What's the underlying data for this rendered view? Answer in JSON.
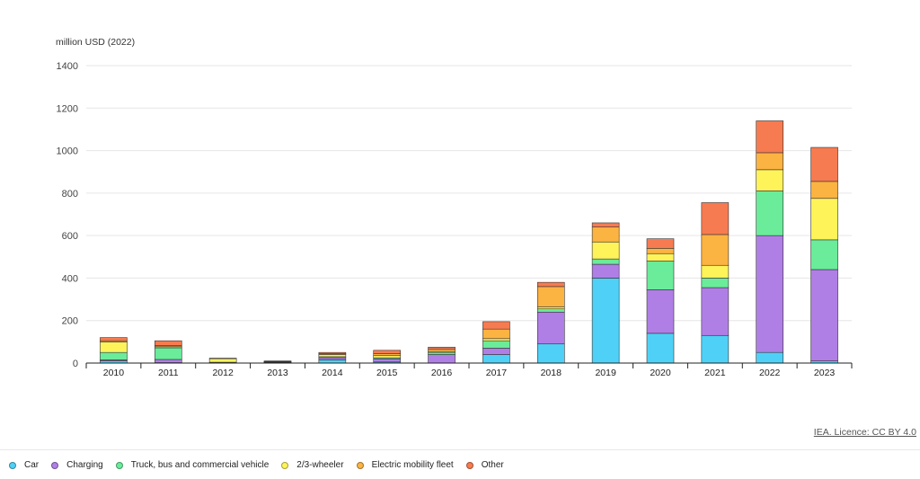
{
  "chart_data": {
    "type": "bar",
    "stacked": true,
    "ylabel": "million USD (2022)",
    "ylim": [
      0,
      1400
    ],
    "yticks": [
      0,
      200,
      400,
      600,
      800,
      1000,
      1200,
      1400
    ],
    "grid": true,
    "legend_position": "bottom",
    "categories": [
      "2010",
      "2011",
      "2012",
      "2013",
      "2014",
      "2015",
      "2016",
      "2017",
      "2018",
      "2019",
      "2020",
      "2021",
      "2022",
      "2023"
    ],
    "series": [
      {
        "name": "Car",
        "color": "#4fd1f7",
        "values": [
          10,
          2,
          0,
          0,
          15,
          5,
          0,
          40,
          90,
          400,
          140,
          130,
          50,
          10
        ]
      },
      {
        "name": "Charging",
        "color": "#b07fe6",
        "values": [
          5,
          15,
          2,
          3,
          10,
          15,
          40,
          30,
          150,
          65,
          205,
          225,
          550,
          430
        ]
      },
      {
        "name": "Truck, bus and commercial vehicle",
        "color": "#6aec9a",
        "values": [
          35,
          55,
          2,
          3,
          5,
          5,
          10,
          35,
          15,
          25,
          135,
          45,
          210,
          140
        ]
      },
      {
        "name": "2/3-wheeler",
        "color": "#fff35a",
        "values": [
          50,
          5,
          17,
          2,
          10,
          10,
          5,
          10,
          10,
          80,
          35,
          60,
          100,
          195
        ]
      },
      {
        "name": "Electric mobility fleet",
        "color": "#fbb342",
        "values": [
          5,
          5,
          2,
          2,
          5,
          10,
          10,
          45,
          95,
          70,
          25,
          145,
          80,
          80
        ]
      },
      {
        "name": "Other",
        "color": "#f77b50",
        "values": [
          15,
          23,
          0,
          0,
          5,
          15,
          10,
          35,
          20,
          20,
          45,
          150,
          150,
          160
        ]
      }
    ]
  },
  "credit": "IEA. Licence: CC BY 4.0"
}
